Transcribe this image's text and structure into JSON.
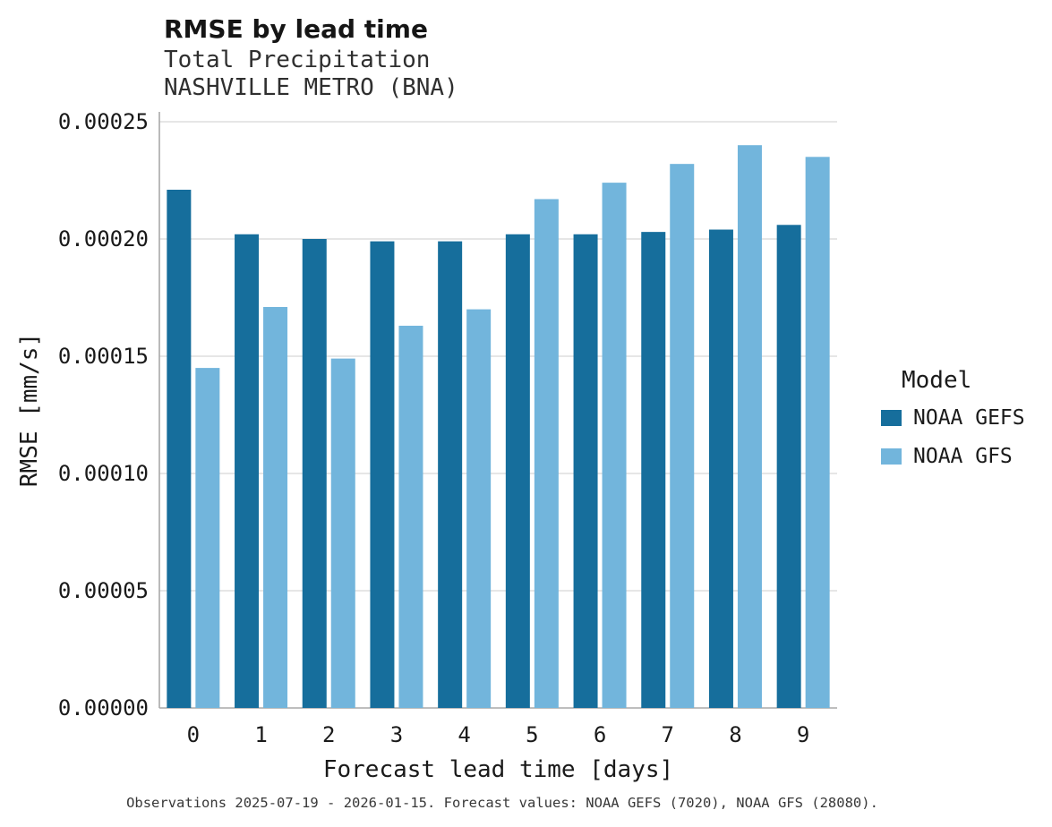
{
  "header": {
    "title": "RMSE by lead time",
    "subtitle1": "Total Precipitation",
    "subtitle2": "NASHVILLE METRO (BNA)"
  },
  "caption": "Observations 2025-07-19 - 2026-01-15. Forecast values: NOAA GEFS (7020), NOAA GFS (28080).",
  "colors": {
    "gefs": "#166e9c",
    "gfs": "#72b5dc",
    "grid": "#d6d6d6",
    "axis": "#a9a9a9"
  },
  "chart_data": {
    "type": "bar",
    "title": "RMSE by lead time",
    "subtitle": [
      "Total Precipitation",
      "NASHVILLE METRO (BNA)"
    ],
    "xlabel": "Forecast lead time [days]",
    "ylabel": "RMSE [mm/s]",
    "categories": [
      "0",
      "1",
      "2",
      "3",
      "4",
      "5",
      "6",
      "7",
      "8",
      "9"
    ],
    "series": [
      {
        "name": "NOAA GEFS",
        "color": "#166e9c",
        "values": [
          0.000221,
          0.000202,
          0.0002,
          0.000199,
          0.000199,
          0.000202,
          0.000202,
          0.000203,
          0.000204,
          0.000206
        ]
      },
      {
        "name": "NOAA GFS",
        "color": "#72b5dc",
        "values": [
          0.000145,
          0.000171,
          0.000149,
          0.000163,
          0.00017,
          0.000217,
          0.000224,
          0.000232,
          0.00024,
          0.000235
        ]
      }
    ],
    "ylim": [
      0,
      0.00025
    ],
    "yticks": [
      0,
      5e-05,
      0.0001,
      0.00015,
      0.0002,
      0.00025
    ],
    "ytick_labels": [
      "0.00000",
      "0.00005",
      "0.00010",
      "0.00015",
      "0.00020",
      "0.00025"
    ],
    "grid": true,
    "legend_title": "Model",
    "legend_position": "right"
  }
}
